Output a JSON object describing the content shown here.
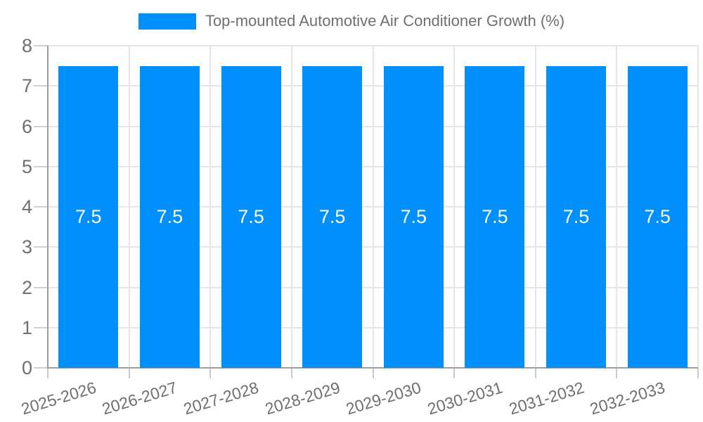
{
  "legend": {
    "label": "Top-mounted Automotive Air Conditioner Growth (%)",
    "swatch_color": "#008FFB"
  },
  "chart_data": {
    "type": "bar",
    "title": "Top-mounted Automotive Air Conditioner Growth (%)",
    "categories": [
      "2025-2026",
      "2026-2027",
      "2027-2028",
      "2028-2029",
      "2029-2030",
      "2030-2031",
      "2031-2032",
      "2032-2033"
    ],
    "series": [
      {
        "name": "Top-mounted Automotive Air Conditioner Growth (%)",
        "color": "#008FFB",
        "values": [
          7.5,
          7.5,
          7.5,
          7.5,
          7.5,
          7.5,
          7.5,
          7.5
        ],
        "data_labels": [
          "7.5",
          "7.5",
          "7.5",
          "7.5",
          "7.5",
          "7.5",
          "7.5",
          "7.5"
        ]
      }
    ],
    "xlabel": "",
    "ylabel": "",
    "ylim": [
      0,
      8
    ],
    "yticks": [
      "0",
      "1",
      "2",
      "3",
      "4",
      "5",
      "6",
      "7",
      "8"
    ],
    "grid": true,
    "legend_position": "top",
    "x_label_rotation_deg": -17
  },
  "colors": {
    "background": "#FFFFFF",
    "bar": "#008FFB",
    "bar_label": "#FFFFFF",
    "axis_line": "#9E9E9E",
    "gridline": "#E6E6E6",
    "y_tick": "#CFCFCF",
    "x_tick": "#C9C9C9",
    "text": "#6F6F6F"
  }
}
